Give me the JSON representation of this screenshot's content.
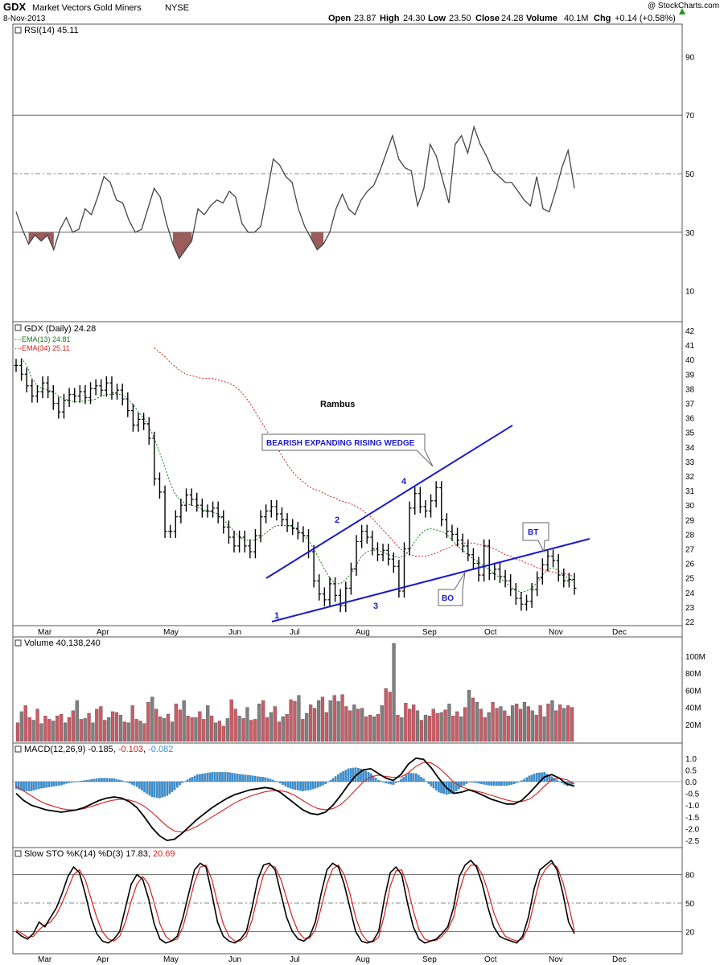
{
  "header": {
    "symbol": "GDX",
    "name": "Market Vectors Gold Miners",
    "exchange": "NYSE",
    "date": "8-Nov-2013",
    "watermark": "@ StockCharts.com",
    "open_label": "Open",
    "open": "23.87",
    "high_label": "High",
    "high": "24.30",
    "low_label": "Low",
    "low": "23.50",
    "close_label": "Close",
    "close": "24.28",
    "volume_label": "Volume",
    "volume": "40.1M",
    "chg_label": "Chg",
    "chg": "+0.14 (+0.58%)"
  },
  "colors": {
    "price_bar": "#000000",
    "ema13": "#1a7a1a",
    "ema34": "#d42020",
    "vol_up": "#cc5b66",
    "vol_down": "#808080",
    "macd_hist": "#3a8fd0",
    "rsi_shade": "#9b5c5c",
    "annotation": "#1a1acc",
    "grid": "#d8d8d8"
  },
  "chart_data": [
    {
      "type": "line",
      "panel": "rsi",
      "legend": "RSI(14) 45.11",
      "ylim": [
        0,
        100
      ],
      "yticks": [
        10,
        30,
        50,
        70,
        90
      ],
      "levels": [
        30,
        50,
        70
      ],
      "x": [
        0,
        2,
        4,
        6,
        8,
        10,
        12,
        14,
        16,
        18,
        20,
        22,
        24,
        26,
        28,
        30,
        32,
        34,
        36,
        38,
        40,
        42,
        44,
        46,
        48,
        50,
        52,
        54,
        56,
        58,
        60,
        62,
        64,
        66,
        68,
        70,
        72,
        74,
        76,
        78,
        80,
        82,
        84,
        86,
        88,
        90,
        92,
        94,
        96,
        98,
        100,
        102,
        104,
        106,
        108,
        110,
        112,
        114,
        116,
        118,
        120,
        122,
        124,
        126,
        128,
        130,
        132,
        134,
        136,
        138,
        140,
        142,
        144,
        146,
        148,
        150,
        152,
        154,
        156,
        158,
        160,
        162,
        164,
        166,
        168,
        170,
        172,
        174,
        176,
        178
      ],
      "values": [
        37,
        31,
        26,
        29,
        27,
        29,
        24,
        31,
        35,
        30,
        31,
        38,
        36,
        42,
        49,
        47,
        41,
        40,
        34,
        30,
        31,
        38,
        45,
        42,
        33,
        26,
        21,
        24,
        27,
        38,
        36,
        39,
        41,
        40,
        44,
        42,
        33,
        30,
        30,
        32,
        43,
        55,
        53,
        49,
        47,
        38,
        32,
        28,
        24,
        26,
        30,
        38,
        43,
        38,
        36,
        41,
        44,
        46,
        51,
        57,
        63,
        55,
        52,
        51,
        39,
        45,
        60,
        56,
        48,
        40,
        60,
        63,
        57,
        66,
        60,
        56,
        51,
        49,
        47,
        47,
        44,
        41,
        39,
        49,
        38,
        37,
        44,
        52,
        58,
        45
      ]
    },
    {
      "type": "bar",
      "panel": "price",
      "legend": "GDX (Daily) 24.28",
      "ema13_legend": "EMA(13) 24.81",
      "ema34_legend": "EMA(34) 25.11",
      "ylim": [
        22,
        42
      ],
      "yticks": [
        22,
        23,
        24,
        25,
        26,
        27,
        28,
        29,
        30,
        31,
        32,
        33,
        34,
        35,
        36,
        37,
        38,
        39,
        40,
        41,
        42
      ],
      "x_tick_labels": [
        "Mar",
        "Apr",
        "May",
        "Jun",
        "Jul",
        "Aug",
        "Sep",
        "Oct",
        "Nov",
        "Dec"
      ],
      "close": [
        39.6,
        39.0,
        38.2,
        37.5,
        37.8,
        38.4,
        37.8,
        37.0,
        36.4,
        37.2,
        37.6,
        37.5,
        37.8,
        37.4,
        38.0,
        38.2,
        37.9,
        38.4,
        37.7,
        37.9,
        37.3,
        36.5,
        35.5,
        35.9,
        35.6,
        34.6,
        31.8,
        30.9,
        28.2,
        28.2,
        29.2,
        30.0,
        30.7,
        30.4,
        30.0,
        29.6,
        29.6,
        29.8,
        29.2,
        28.5,
        27.8,
        27.2,
        27.8,
        27.2,
        26.8,
        27.9,
        29.2,
        29.6,
        29.9,
        29.4,
        29.0,
        28.6,
        28.4,
        28.1,
        27.9,
        26.8,
        24.8,
        23.9,
        23.5,
        24.6,
        23.8,
        23.1,
        24.3,
        25.6,
        27.5,
        28.2,
        27.8,
        27.0,
        26.6,
        26.9,
        26.3,
        25.8,
        24.1,
        27.0,
        29.8,
        30.8,
        29.9,
        29.6,
        30.3,
        31.2,
        29.0,
        28.2,
        28.0,
        27.6,
        27.2,
        26.6,
        26.0,
        25.2,
        27.2,
        25.3,
        25.6,
        25.1,
        24.8,
        24.2,
        23.6,
        23.2,
        23.4,
        24.2,
        25.0,
        25.9,
        26.5,
        26.2,
        25.2,
        24.8,
        24.9,
        24.3
      ],
      "ema13": [
        40.1,
        39.6,
        38.7,
        38.2,
        38.0,
        37.9,
        37.8,
        37.5,
        37.3,
        37.2,
        37.1,
        37.1,
        37.2,
        37.2,
        37.3,
        37.5,
        37.6,
        37.6,
        37.6,
        37.6,
        37.3,
        36.9,
        36.4,
        36.0,
        35.4,
        34.6,
        33.6,
        32.6,
        31.5,
        30.7,
        30.3,
        30.1,
        30.0,
        29.9,
        29.7,
        29.6,
        29.5,
        29.4,
        29.0,
        28.6,
        28.2,
        27.8,
        27.6,
        27.6,
        27.6,
        27.8,
        28.1,
        28.4,
        28.6,
        28.6,
        28.6,
        28.5,
        28.3,
        28.0,
        27.6,
        27.0,
        26.3,
        25.6,
        25.0,
        24.6,
        24.6,
        24.9,
        25.3,
        25.9,
        26.5,
        26.8,
        26.9,
        26.9,
        26.8,
        26.6,
        26.5,
        26.4,
        26.5,
        26.9,
        27.5,
        28.0,
        28.3,
        28.4,
        28.3,
        28.2,
        28.0,
        27.6,
        27.2,
        26.9,
        26.6,
        26.3,
        26.1,
        25.8,
        25.6,
        25.3,
        25.0,
        24.7,
        24.4,
        24.2,
        24.0,
        24.1,
        24.3,
        24.7,
        25.2,
        25.6,
        25.7,
        25.5,
        25.2,
        24.9,
        24.8
      ],
      "ema34": [
        40.8,
        40.5,
        40.2,
        39.8,
        39.5,
        39.2,
        39.0,
        38.9,
        38.8,
        38.7,
        38.7,
        38.7,
        38.6,
        38.5,
        38.4,
        38.2,
        37.9,
        37.5,
        37.0,
        36.4,
        35.8,
        35.2,
        34.6,
        34.0,
        33.4,
        32.8,
        32.3,
        31.9,
        31.6,
        31.3,
        31.1,
        31.0,
        30.8,
        30.6,
        30.5,
        30.3,
        30.2,
        30.1,
        29.9,
        29.7,
        29.4,
        29.1,
        28.7,
        28.3,
        27.9,
        27.5,
        27.1,
        26.8,
        26.6,
        26.5,
        26.5,
        26.5,
        26.6,
        26.7,
        26.9,
        27.0,
        27.2,
        27.3,
        27.4,
        27.4,
        27.4,
        27.3,
        27.2,
        27.1,
        27.0,
        26.8,
        26.6,
        26.5,
        26.3,
        26.2,
        26.0,
        25.9,
        25.7,
        25.6,
        25.5,
        25.4,
        25.3,
        25.3,
        25.2,
        25.1
      ],
      "annotations": {
        "author": "Rambus",
        "pattern_label": "BEARISH EXPANDING RISING WEDGE",
        "points": [
          "1",
          "2",
          "3",
          "4"
        ],
        "bo_label": "BO",
        "bt_label": "BT"
      }
    },
    {
      "type": "bar",
      "panel": "volume",
      "legend": "Volume 40,138,240",
      "unit": "M",
      "yticks_labels": [
        "20M",
        "40M",
        "60M",
        "80M",
        "100M"
      ],
      "yticks": [
        20,
        40,
        60,
        80,
        100
      ],
      "ylim": [
        0,
        115
      ],
      "values": [
        22,
        35,
        42,
        28,
        25,
        38,
        21,
        30,
        26,
        24,
        30,
        32,
        22,
        28,
        36,
        48,
        26,
        27,
        33,
        22,
        38,
        41,
        25,
        28,
        35,
        34,
        31,
        23,
        22,
        42,
        26,
        24,
        21,
        46,
        52,
        38,
        29,
        27,
        32,
        23,
        44,
        37,
        48,
        30,
        28,
        28,
        35,
        26,
        42,
        30,
        22,
        24,
        18,
        27,
        49,
        38,
        30,
        27,
        40,
        25,
        26,
        44,
        48,
        28,
        34,
        41,
        23,
        29,
        32,
        49,
        47,
        54,
        26,
        33,
        43,
        39,
        48,
        52,
        34,
        48,
        54,
        47,
        55,
        41,
        36,
        43,
        38,
        39,
        29,
        31,
        29,
        32,
        42,
        62,
        58,
        115,
        31,
        28,
        45,
        38,
        43,
        36,
        25,
        31,
        30,
        38,
        33,
        34,
        37,
        44,
        30,
        35,
        29,
        40,
        60,
        51,
        46,
        38,
        28,
        34,
        46,
        39,
        41,
        36,
        30,
        42,
        44,
        38,
        46,
        41,
        36,
        31,
        42,
        29,
        44,
        48,
        36,
        43,
        39,
        42,
        40
      ],
      "up": [
        true,
        false,
        true,
        true,
        false,
        true,
        false,
        true,
        true,
        false,
        true,
        true,
        false,
        true,
        true,
        false,
        true,
        false,
        true,
        false,
        true,
        true,
        true,
        false,
        true,
        true,
        false,
        true,
        false,
        true,
        true,
        false,
        true,
        true,
        false,
        true,
        true,
        false,
        true,
        false,
        true,
        true,
        false,
        true,
        true,
        false,
        true,
        true,
        false,
        true,
        false,
        true,
        true,
        false,
        true,
        true,
        false,
        true,
        false,
        true,
        true,
        false,
        true,
        true,
        false,
        true,
        true,
        false,
        true,
        true,
        true,
        false,
        true,
        false,
        true,
        true,
        false,
        true,
        true,
        false,
        true,
        false,
        true,
        true,
        true,
        false,
        true,
        false,
        true,
        true,
        false,
        true,
        false,
        true,
        true,
        false,
        true,
        false,
        true,
        true,
        true,
        false,
        true,
        false,
        true,
        true,
        true,
        false,
        true,
        false,
        true,
        true,
        false,
        true,
        false,
        true,
        false,
        true,
        true,
        false,
        true,
        true,
        false,
        true,
        true,
        false,
        true,
        true,
        false,
        true,
        false,
        true,
        true,
        false,
        true,
        false,
        true,
        true,
        false,
        true,
        true
      ]
    },
    {
      "type": "line",
      "panel": "macd",
      "legend_base": "MACD(12,26,9)",
      "macd_value": "-0.185",
      "signal_value": "-0.103",
      "hist_value": "-0.082",
      "ylim": [
        -2.6,
        1.3
      ],
      "yticks": [
        1.0,
        0.5,
        0.0,
        -0.5,
        -1.0,
        -1.5,
        -2.0,
        -2.5
      ],
      "ytick_labels": [
        "1.0",
        "0.5",
        "0.0",
        "-0.5",
        "-1.0",
        "-1.5",
        "-2.0",
        "-2.5"
      ],
      "macd": [
        -0.5,
        -0.8,
        -1.0,
        -1.1,
        -1.2,
        -1.25,
        -1.3,
        -1.25,
        -1.2,
        -1.1,
        -0.95,
        -0.8,
        -0.7,
        -0.65,
        -0.7,
        -0.85,
        -1.1,
        -1.5,
        -1.95,
        -2.3,
        -2.5,
        -2.45,
        -2.2,
        -1.9,
        -1.6,
        -1.35,
        -1.1,
        -0.9,
        -0.7,
        -0.55,
        -0.45,
        -0.35,
        -0.3,
        -0.25,
        -0.3,
        -0.45,
        -0.7,
        -0.95,
        -1.2,
        -1.35,
        -1.4,
        -1.3,
        -1.0,
        -0.6,
        -0.15,
        0.25,
        0.5,
        0.55,
        0.35,
        0.15,
        0.05,
        0.3,
        0.75,
        1.0,
        0.95,
        0.6,
        0.15,
        -0.25,
        -0.5,
        -0.45,
        -0.35,
        -0.45,
        -0.6,
        -0.75,
        -0.85,
        -0.95,
        -0.95,
        -0.8,
        -0.5,
        -0.15,
        0.2,
        0.3,
        0.15,
        -0.1,
        -0.19
      ],
      "signal": [
        -0.2,
        -0.4,
        -0.6,
        -0.8,
        -0.95,
        -1.05,
        -1.15,
        -1.2,
        -1.2,
        -1.15,
        -1.05,
        -0.95,
        -0.85,
        -0.78,
        -0.75,
        -0.78,
        -0.88,
        -1.05,
        -1.3,
        -1.6,
        -1.9,
        -2.1,
        -2.15,
        -2.05,
        -1.9,
        -1.7,
        -1.5,
        -1.3,
        -1.1,
        -0.9,
        -0.75,
        -0.62,
        -0.52,
        -0.43,
        -0.38,
        -0.38,
        -0.45,
        -0.6,
        -0.8,
        -1.0,
        -1.15,
        -1.2,
        -1.15,
        -0.98,
        -0.7,
        -0.35,
        -0.02,
        0.2,
        0.28,
        0.22,
        0.18,
        0.2,
        0.38,
        0.65,
        0.82,
        0.8,
        0.6,
        0.3,
        -0.02,
        -0.22,
        -0.33,
        -0.4,
        -0.48,
        -0.58,
        -0.68,
        -0.78,
        -0.85,
        -0.85,
        -0.75,
        -0.52,
        -0.2,
        0.08,
        0.15,
        0.08,
        -0.1
      ]
    },
    {
      "type": "line",
      "panel": "stochastic",
      "legend_base": "Slow STO %K(14) %D(3)",
      "k_value": "17.83",
      "d_value": "20.69",
      "ylim": [
        0,
        100
      ],
      "yticks": [
        20,
        50,
        80
      ],
      "x_tick_labels": [
        "Mar",
        "Apr",
        "May",
        "Jun",
        "Jul",
        "Aug",
        "Sep",
        "Oct",
        "Nov",
        "Dec"
      ],
      "k": [
        20,
        15,
        12,
        18,
        30,
        25,
        35,
        45,
        60,
        78,
        88,
        82,
        60,
        35,
        18,
        10,
        8,
        12,
        20,
        45,
        70,
        80,
        75,
        55,
        28,
        12,
        8,
        10,
        15,
        35,
        60,
        85,
        92,
        88,
        60,
        30,
        15,
        10,
        8,
        12,
        20,
        45,
        75,
        90,
        92,
        85,
        60,
        35,
        20,
        12,
        10,
        15,
        30,
        60,
        85,
        92,
        88,
        70,
        45,
        20,
        10,
        8,
        10,
        20,
        55,
        82,
        88,
        80,
        50,
        25,
        12,
        8,
        10,
        12,
        18,
        25,
        45,
        78,
        90,
        95,
        88,
        70,
        45,
        25,
        15,
        12,
        10,
        8,
        15,
        35,
        65,
        85,
        90,
        95,
        85,
        60,
        30,
        18
      ],
      "d": [
        22,
        18,
        14,
        15,
        22,
        27,
        30,
        38,
        50,
        65,
        80,
        85,
        75,
        55,
        35,
        20,
        12,
        10,
        15,
        30,
        52,
        70,
        78,
        70,
        50,
        28,
        15,
        10,
        12,
        25,
        48,
        72,
        88,
        90,
        75,
        50,
        28,
        15,
        10,
        10,
        15,
        32,
        58,
        80,
        90,
        88,
        75,
        55,
        35,
        20,
        13,
        13,
        22,
        45,
        70,
        86,
        90,
        80,
        60,
        35,
        18,
        10,
        9,
        14,
        38,
        68,
        84,
        85,
        68,
        42,
        22,
        12,
        10,
        11,
        15,
        22,
        35,
        62,
        82,
        90,
        90,
        80,
        62,
        40,
        25,
        15,
        12,
        10,
        12,
        25,
        50,
        75,
        86,
        92,
        88,
        72,
        48,
        21
      ]
    }
  ]
}
